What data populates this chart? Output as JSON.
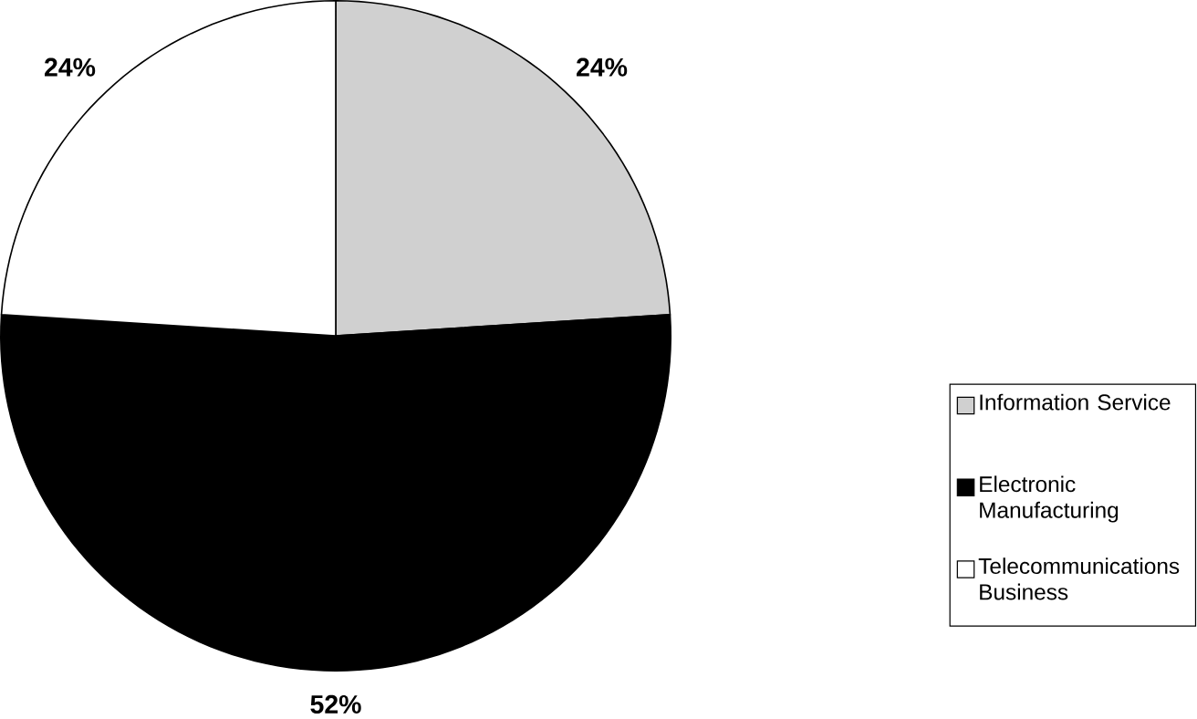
{
  "chart_data": {
    "type": "pie",
    "categories": [
      "Information Service",
      "Electronic Manufacturing",
      "Telecommunications Business"
    ],
    "values": [
      24,
      52,
      24
    ],
    "value_labels": [
      "24%",
      "52%",
      "24%"
    ],
    "colors": [
      "#d0d0d0",
      "#000000",
      "#ffffff"
    ],
    "legend": "right"
  }
}
